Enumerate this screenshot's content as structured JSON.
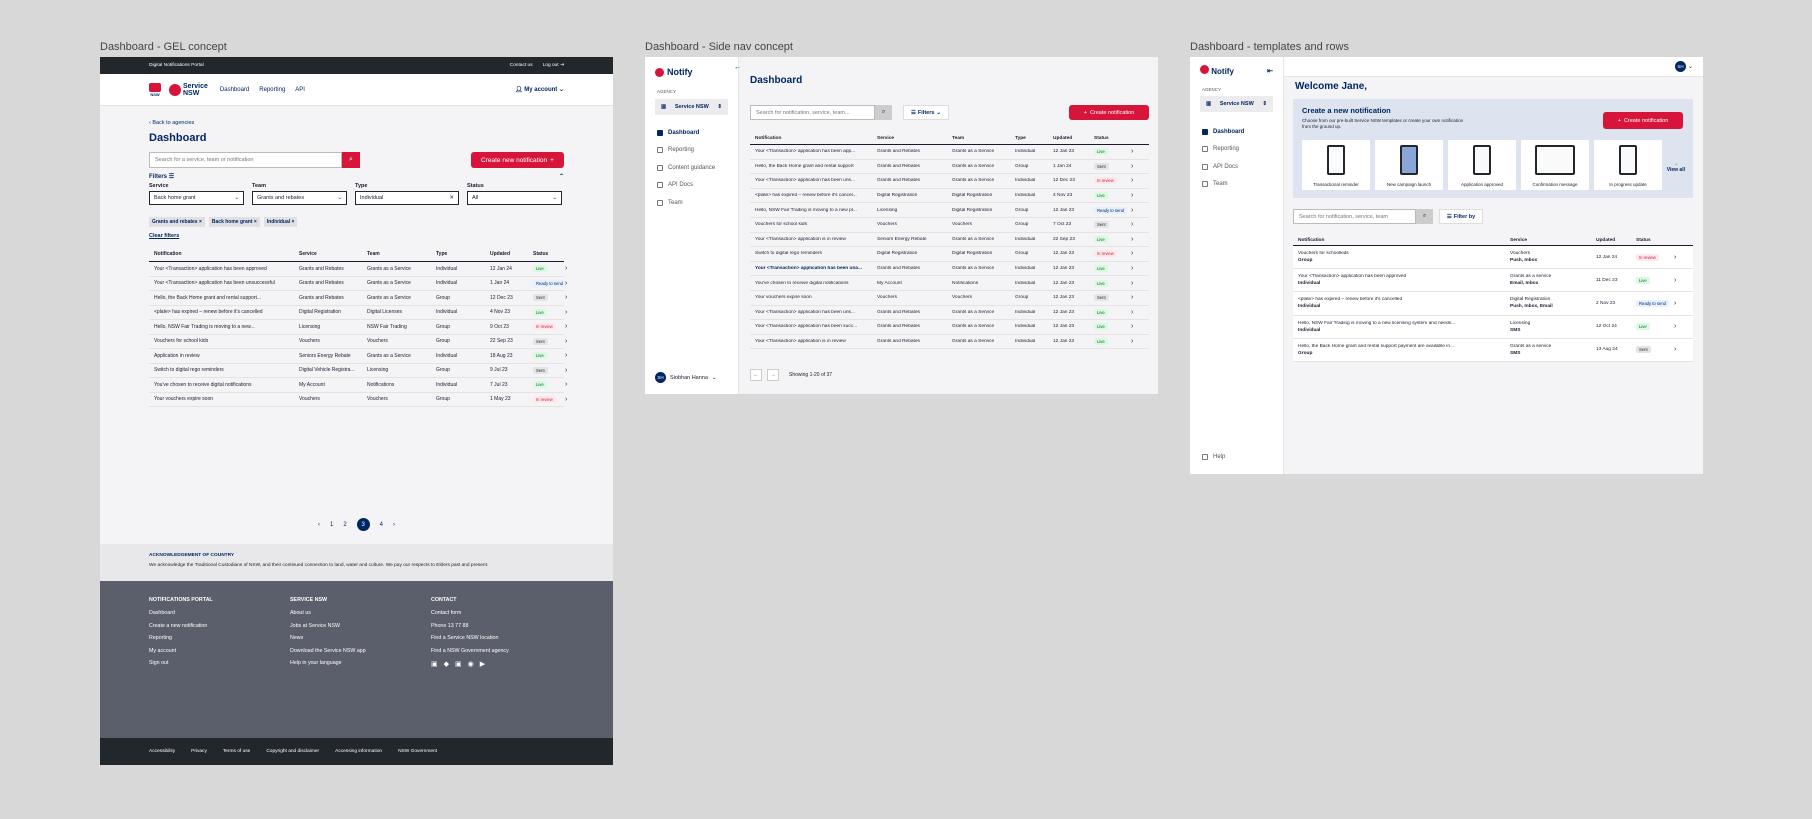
{
  "frames": {
    "f1": "Dashboard - GEL concept",
    "f2": "Dashboard - Side nav concept",
    "f3": "Dashboard - templates and rows"
  },
  "gel": {
    "portal": "Digital Notifications Portal",
    "contact": "Contact us",
    "logout": "Log out",
    "brand_nsw": "NSW",
    "brand_service": "Service",
    "brand_service2": "NSW",
    "nav": [
      "Dashboard",
      "Reporting",
      "API"
    ],
    "account": "My account",
    "back": "Back to agencies",
    "title": "Dashboard",
    "search_placeholder": "Search for a service, team or notification",
    "create": "Create new notification",
    "filters": "Filters",
    "f_service_label": "Service",
    "f_service": "Back home grant",
    "f_team_label": "Team",
    "f_team": "Grants and rebates",
    "f_type_label": "Type",
    "f_type": "Individual",
    "f_status_label": "Status",
    "f_status": "All",
    "chips": [
      "Grants and rebates",
      "Back home grant",
      "Individual"
    ],
    "clear": "Clear filters",
    "headers": [
      "Notification",
      "Service",
      "Team",
      "Type",
      "Updated",
      "Status"
    ],
    "rows": [
      [
        "Your <Transaction> application has been approved",
        "Grants and Rebates",
        "Grants as a Service",
        "Individual",
        "12 Jan 24",
        "Live"
      ],
      [
        "Your <Transaction> application has been unsuccessful",
        "Grants and Rebates",
        "Grants as a Service",
        "Individual",
        "1 Jan 24",
        "Ready to send"
      ],
      [
        "Hello, the Back Home grant and rental support...",
        "Grants and Rebates",
        "Grants as a Service",
        "Group",
        "12 Dec 23",
        "Sent"
      ],
      [
        "<plate> has expired – renew before it's cancelled",
        "Digital Registration",
        "Digital Licenses",
        "Individual",
        "4 Nov 23",
        "Live"
      ],
      [
        "Hello, NSW Fair Trading is moving to a new...",
        "Licensing",
        "NSW Fair Trading",
        "Group",
        "9 Oct 23",
        "In review"
      ],
      [
        "Vouchers for school kids",
        "Vouchers",
        "Vouchers",
        "Group",
        "22 Sep 23",
        "Sent"
      ],
      [
        "Application in review",
        "Seniors Energy Rebate",
        "Grants as a Service",
        "Individual",
        "18 Aug 23",
        "Live"
      ],
      [
        "Switch to digital rego reminders",
        "Digital Vehicle Registra...",
        "Licensing",
        "Group",
        "9 Jul 23",
        "Sent"
      ],
      [
        "You've chosen to receive digital notifications",
        "My Account",
        "Notifications",
        "Individual",
        "7 Jul 23",
        "Live"
      ],
      [
        "Your vouchers expire soon",
        "Vouchers",
        "Vouchers",
        "Group",
        "1 May 23",
        "In review"
      ]
    ],
    "pages": [
      "1",
      "2",
      "3",
      "4"
    ],
    "ack_title": "ACKNOWLEDGEMENT OF COUNTRY",
    "ack_text": "We acknowledge the Traditional Custodians of NSW, and their continued connection to land, water and culture. We pay our respects to Elders past and present.",
    "footer_col1_title": "NOTIFICATIONS PORTAL",
    "footer_col1": [
      "Dashboard",
      "Create a new notification",
      "Reporting",
      "My account",
      "Sign out"
    ],
    "footer_col2_title": "SERVICE NSW",
    "footer_col2": [
      "About us",
      "Jobs at Service NSW",
      "News",
      "Download the Service NSW app",
      "Help in your language"
    ],
    "footer_col3_title": "CONTACT",
    "footer_col3": [
      "Contact form",
      "Phone 13 77 88",
      "Find a Service NSW location",
      "Find a NSW Government agency"
    ],
    "legal": [
      "Accessibility",
      "Privacy",
      "Terms of use",
      "Copyright and disclaimer",
      "Accessing information",
      "NSW Government"
    ]
  },
  "side": {
    "app": "Notify",
    "agency_label": "AGENCY",
    "agency": "Service NSW",
    "links": [
      "Dashboard",
      "Reporting",
      "Content guidance",
      "API Docs",
      "Team"
    ],
    "user": "Siobhan Hanna",
    "initials": "SH",
    "title": "Dashboard",
    "search_placeholder": "Search for notification, service, team...",
    "filters": "Filters",
    "create": "Create notification",
    "headers": [
      "Notification",
      "Service",
      "Team",
      "Type",
      "Updated",
      "Status"
    ],
    "rows": [
      [
        "Your <Transaction> application has been app...",
        "Grants and Rebates",
        "Grants as a Service",
        "Individual",
        "12 Jan 23",
        "Live"
      ],
      [
        "Hello, the Back Home grant and rental support",
        "Grants and Rebates",
        "Grants as a Service",
        "Group",
        "1 Jan 24",
        "Sent"
      ],
      [
        "Your <Transaction> application has been uns...",
        "Grants and Rebates",
        "Grants as a Service",
        "Individual",
        "12 Dec 23",
        "In review"
      ],
      [
        "<plate> has expired – renew before it's cancel...",
        "Digital Registration",
        "Digital Registration",
        "Individual",
        "4 Nov 23",
        "Live"
      ],
      [
        "Hello, NSW Fair Trading is moving to a new pl...",
        "Licensing",
        "Digital Registration",
        "Group",
        "12 Jan 23",
        "Ready to send"
      ],
      [
        "Vouchers for school kids",
        "Vouchers",
        "Vouchers",
        "Group",
        "7 Oct 23",
        "Sent"
      ],
      [
        "Your <Transaction> application is in review",
        "Seniors Energy Rebate",
        "Grants as a Service",
        "Individual",
        "22 Sep 23",
        "Live"
      ],
      [
        "Switch to digital rego reminders",
        "Digital Registration",
        "Digital Registration",
        "Group",
        "12 Jan 23",
        "In review"
      ],
      [
        "Your <Transaction> application has been una...",
        "Grants and Rebates",
        "Grants as a Service",
        "Individual",
        "12 Jan 23",
        "Live"
      ],
      [
        "You've chosen to receive digital notifications",
        "My Account",
        "Notifications",
        "Individual",
        "12 Jan 23",
        "Live"
      ],
      [
        "Your vouchers expire soon",
        "Vouchers",
        "Vouchers",
        "Group",
        "12 Jan 23",
        "Sent"
      ],
      [
        "Your <Transaction> application has been uns...",
        "Grants and Rebates",
        "Grants as a Service",
        "Individual",
        "12 Jan 23",
        "Live"
      ],
      [
        "Your <Transaction> application has been succ...",
        "Grants and Rebates",
        "Grants as a Service",
        "Individual",
        "12 Jan 23",
        "Live"
      ],
      [
        "Your <Transaction> application is in review",
        "Grants and Rebates",
        "Grants as a Service",
        "Individual",
        "12 Jan 23",
        "Live"
      ]
    ],
    "showing": "Showing 1-20 of 37"
  },
  "tpl": {
    "app": "Notify",
    "agency_label": "AGENCY",
    "agency": "Service NSW",
    "links": [
      "Dashboard",
      "Reporting",
      "API Docs",
      "Team"
    ],
    "help": "Help",
    "initials": "SH",
    "welcome": "Welcome Jane,",
    "card_title": "Create a new notification",
    "card_desc": "Choose from our pre-built Service NSW templates or create your own notification from the ground up.",
    "create": "Create notification",
    "templates": [
      "Transactional reminder",
      "New campaign launch",
      "Application approved",
      "Confirmation message",
      "In progress update"
    ],
    "view_all": "View all",
    "search_placeholder": "Search for notification, service, team",
    "filter_by": "Filter by",
    "headers": [
      "Notification",
      "Service",
      "Updated",
      "Status"
    ],
    "rows": [
      {
        "n": "Vouchers for schoolkids",
        "t": "Group",
        "s": "Vouchers",
        "c": "Push, Inbox",
        "u": "12 Jan 24",
        "st": "In review"
      },
      {
        "n": "Your <Transaction> application has been approved",
        "t": "Individual",
        "s": "Grants as a service",
        "c": "Email, Inbox",
        "u": "11 Dec 23",
        "st": "Live"
      },
      {
        "n": "<plate> has expired – renew before it's cancelled",
        "t": "Individual",
        "s": "Digital Registration",
        "c": "Push, Inbox, Email",
        "u": "2 Nov 23",
        "st": "Ready to send"
      },
      {
        "n": "Hello, NSW Fair Trading is moving to a new licensing system and needs...",
        "t": "Individual",
        "s": "Licensing",
        "c": "SMS",
        "u": "12 Oct 24",
        "st": "Live"
      },
      {
        "n": "Hello, the Back Home grant and rental support payment are available in...",
        "t": "Group",
        "s": "Grants as a service",
        "c": "SMS",
        "u": "13 Aug 24",
        "st": "Sent"
      }
    ]
  },
  "colors": {
    "accent": "#d7153a",
    "navy": "#002664",
    "footer": "#5a5f6b",
    "legal": "#22272b"
  }
}
